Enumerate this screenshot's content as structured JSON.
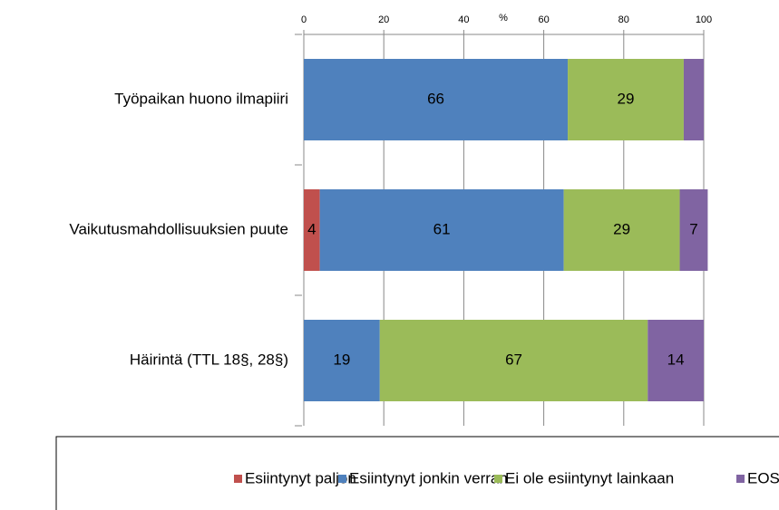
{
  "chart_data": {
    "type": "stacked-barh",
    "categories": [
      "Työpaikan huono ilmapiiri",
      "Vaikutusmahdollisuuksien puute",
      "Häirintä (TTL 18§, 28§)"
    ],
    "series": [
      {
        "name": "Esiintynyt paljon",
        "color": "#c0504d",
        "values": [
          null,
          4,
          null
        ]
      },
      {
        "name": "Esiintynyt jonkin verran",
        "color": "#4f81bd",
        "values": [
          66,
          61,
          19
        ]
      },
      {
        "name": "Ei ole esiintynyt lainkaan",
        "color": "#9bbb59",
        "values": [
          29,
          29,
          67
        ]
      },
      {
        "name": "EOS",
        "color": "#8064a2",
        "values": [
          5,
          7,
          14
        ]
      }
    ],
    "xlabel": "%",
    "xlim": [
      0,
      100
    ],
    "xticks": [
      0,
      20,
      40,
      60,
      80,
      100
    ],
    "grid": true,
    "legend": "bottom"
  }
}
